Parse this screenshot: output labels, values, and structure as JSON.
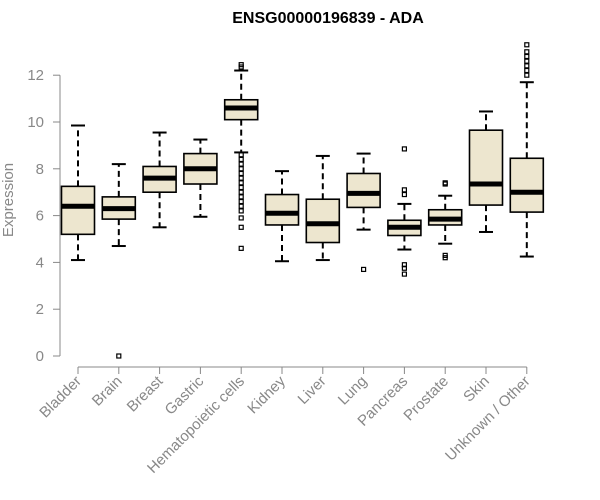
{
  "chart_data": {
    "type": "boxplot",
    "title": "ENSG00000196839 - ADA",
    "ylabel": "Expression",
    "xlabel": "",
    "ylim": [
      0,
      13.5
    ],
    "yticks": [
      0,
      2,
      4,
      6,
      8,
      10,
      12
    ],
    "categories": [
      "Bladder",
      "Brain",
      "Breast",
      "Gastric",
      "Hematopoietic cells",
      "Kidney",
      "Liver",
      "Lung",
      "Pancreas",
      "Prostate",
      "Skin",
      "Unknown / Other"
    ],
    "boxes": [
      {
        "whisker_low": 4.1,
        "q1": 5.2,
        "median": 6.4,
        "q3": 7.25,
        "whisker_high": 9.85,
        "outliers": []
      },
      {
        "whisker_low": 4.7,
        "q1": 5.85,
        "median": 6.3,
        "q3": 6.8,
        "whisker_high": 8.2,
        "outliers": [
          0.0
        ]
      },
      {
        "whisker_low": 5.5,
        "q1": 7.0,
        "median": 7.6,
        "q3": 8.1,
        "whisker_high": 9.55,
        "outliers": []
      },
      {
        "whisker_low": 5.95,
        "q1": 7.35,
        "median": 8.0,
        "q3": 8.65,
        "whisker_high": 9.25,
        "outliers": []
      },
      {
        "whisker_low": 8.7,
        "q1": 10.1,
        "median": 10.6,
        "q3": 10.95,
        "whisker_high": 12.2,
        "outliers": [
          12.45,
          12.35,
          8.6,
          8.4,
          8.2,
          8.0,
          7.8,
          7.6,
          7.4,
          7.2,
          7.0,
          6.8,
          6.6,
          6.4,
          6.2,
          5.9,
          5.5,
          4.6
        ]
      },
      {
        "whisker_low": 4.05,
        "q1": 5.6,
        "median": 6.1,
        "q3": 6.9,
        "whisker_high": 7.9,
        "outliers": []
      },
      {
        "whisker_low": 4.1,
        "q1": 4.85,
        "median": 5.65,
        "q3": 6.7,
        "whisker_high": 8.55,
        "outliers": []
      },
      {
        "whisker_low": 5.4,
        "q1": 6.35,
        "median": 6.95,
        "q3": 7.8,
        "whisker_high": 8.65,
        "outliers": [
          3.7
        ]
      },
      {
        "whisker_low": 4.55,
        "q1": 5.15,
        "median": 5.5,
        "q3": 5.8,
        "whisker_high": 6.5,
        "outliers": [
          8.85,
          7.1,
          6.9,
          3.9,
          3.75,
          3.5
        ]
      },
      {
        "whisker_low": 4.8,
        "q1": 5.6,
        "median": 5.85,
        "q3": 6.25,
        "whisker_high": 6.85,
        "outliers": [
          7.4,
          7.35,
          4.3,
          4.2
        ]
      },
      {
        "whisker_low": 5.3,
        "q1": 6.45,
        "median": 7.35,
        "q3": 9.65,
        "whisker_high": 10.45,
        "outliers": []
      },
      {
        "whisker_low": 4.25,
        "q1": 6.15,
        "median": 7.0,
        "q3": 8.45,
        "whisker_high": 11.7,
        "outliers": [
          13.3,
          13.0,
          12.8,
          12.6,
          12.4,
          12.2,
          12.0
        ]
      }
    ],
    "box_fill": "#ede6cf",
    "box_stroke": "#000000",
    "axis_color": "#888888",
    "grid": false,
    "legend": "none"
  }
}
